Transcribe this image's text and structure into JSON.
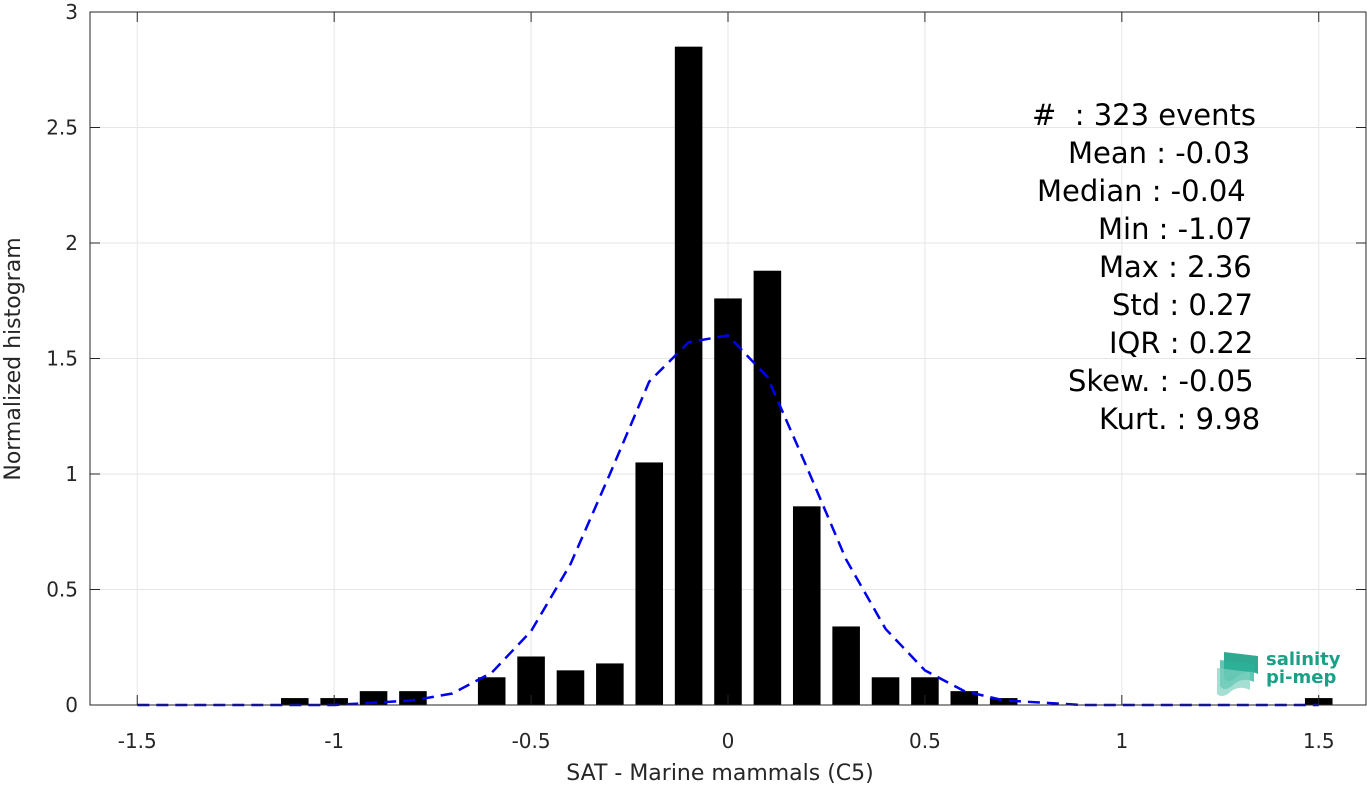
{
  "chart_data": {
    "type": "bar",
    "xlabel": "SAT - Marine mammals (C5)",
    "ylabel": "Normalized histogram",
    "xlim": [
      -1.62,
      1.62
    ],
    "ylim": [
      0,
      3
    ],
    "grid": true,
    "xticks": [
      -1.5,
      -1,
      -0.5,
      0,
      0.5,
      1,
      1.5
    ],
    "xtick_labels": [
      "-1.5",
      "-1",
      "-0.5",
      "0",
      "0.5",
      "1",
      "1.5"
    ],
    "yticks": [
      0,
      0.5,
      1,
      1.5,
      2,
      2.5,
      3
    ],
    "ytick_labels": [
      "0",
      "0.5",
      "1",
      "1.5",
      "2",
      "2.5",
      "3"
    ],
    "bar_width": 0.07,
    "bar_color": "#000000",
    "bars": [
      {
        "x": -1.1,
        "y": 0.03
      },
      {
        "x": -1.0,
        "y": 0.03
      },
      {
        "x": -0.9,
        "y": 0.06
      },
      {
        "x": -0.8,
        "y": 0.06
      },
      {
        "x": -0.6,
        "y": 0.12
      },
      {
        "x": -0.5,
        "y": 0.21
      },
      {
        "x": -0.4,
        "y": 0.15
      },
      {
        "x": -0.3,
        "y": 0.18
      },
      {
        "x": -0.2,
        "y": 1.05
      },
      {
        "x": -0.1,
        "y": 2.85
      },
      {
        "x": 0.0,
        "y": 1.76
      },
      {
        "x": 0.1,
        "y": 1.88
      },
      {
        "x": 0.2,
        "y": 0.86
      },
      {
        "x": 0.3,
        "y": 0.34
      },
      {
        "x": 0.4,
        "y": 0.12
      },
      {
        "x": 0.5,
        "y": 0.12
      },
      {
        "x": 0.6,
        "y": 0.06
      },
      {
        "x": 0.7,
        "y": 0.03
      },
      {
        "x": 1.5,
        "y": 0.03
      }
    ],
    "fit_curve": {
      "style": "dashed",
      "color": "#0000ee",
      "x": [
        -1.5,
        -1.4,
        -1.3,
        -1.2,
        -1.1,
        -1.0,
        -0.9,
        -0.8,
        -0.7,
        -0.6,
        -0.5,
        -0.4,
        -0.3,
        -0.2,
        -0.1,
        0.0,
        0.1,
        0.2,
        0.3,
        0.4,
        0.5,
        0.6,
        0.7,
        0.8,
        0.9,
        1.0,
        1.1,
        1.2,
        1.3,
        1.4,
        1.5
      ],
      "y": [
        0.0,
        0.0,
        0.0,
        0.0,
        0.0,
        0.0,
        0.01,
        0.02,
        0.05,
        0.14,
        0.32,
        0.61,
        1.0,
        1.4,
        1.57,
        1.6,
        1.42,
        1.03,
        0.63,
        0.33,
        0.15,
        0.06,
        0.02,
        0.01,
        0.0,
        0.0,
        0.0,
        0.0,
        0.0,
        0.0,
        0.0
      ]
    }
  },
  "stats_box": {
    "events": "#  : 323 events",
    "mean": "Mean : -0.03",
    "median": "Median : -0.04",
    "min": "Min : -1.07",
    "max": "Max : 2.36",
    "std": "Std : 0.27",
    "iqr": "IQR : 0.22",
    "skew": "Skew. : -0.05",
    "kurt": "Kurt. : 9.98"
  },
  "logo": {
    "line1": "salinity",
    "line2": "pi-mep",
    "color": "#1aa086"
  }
}
